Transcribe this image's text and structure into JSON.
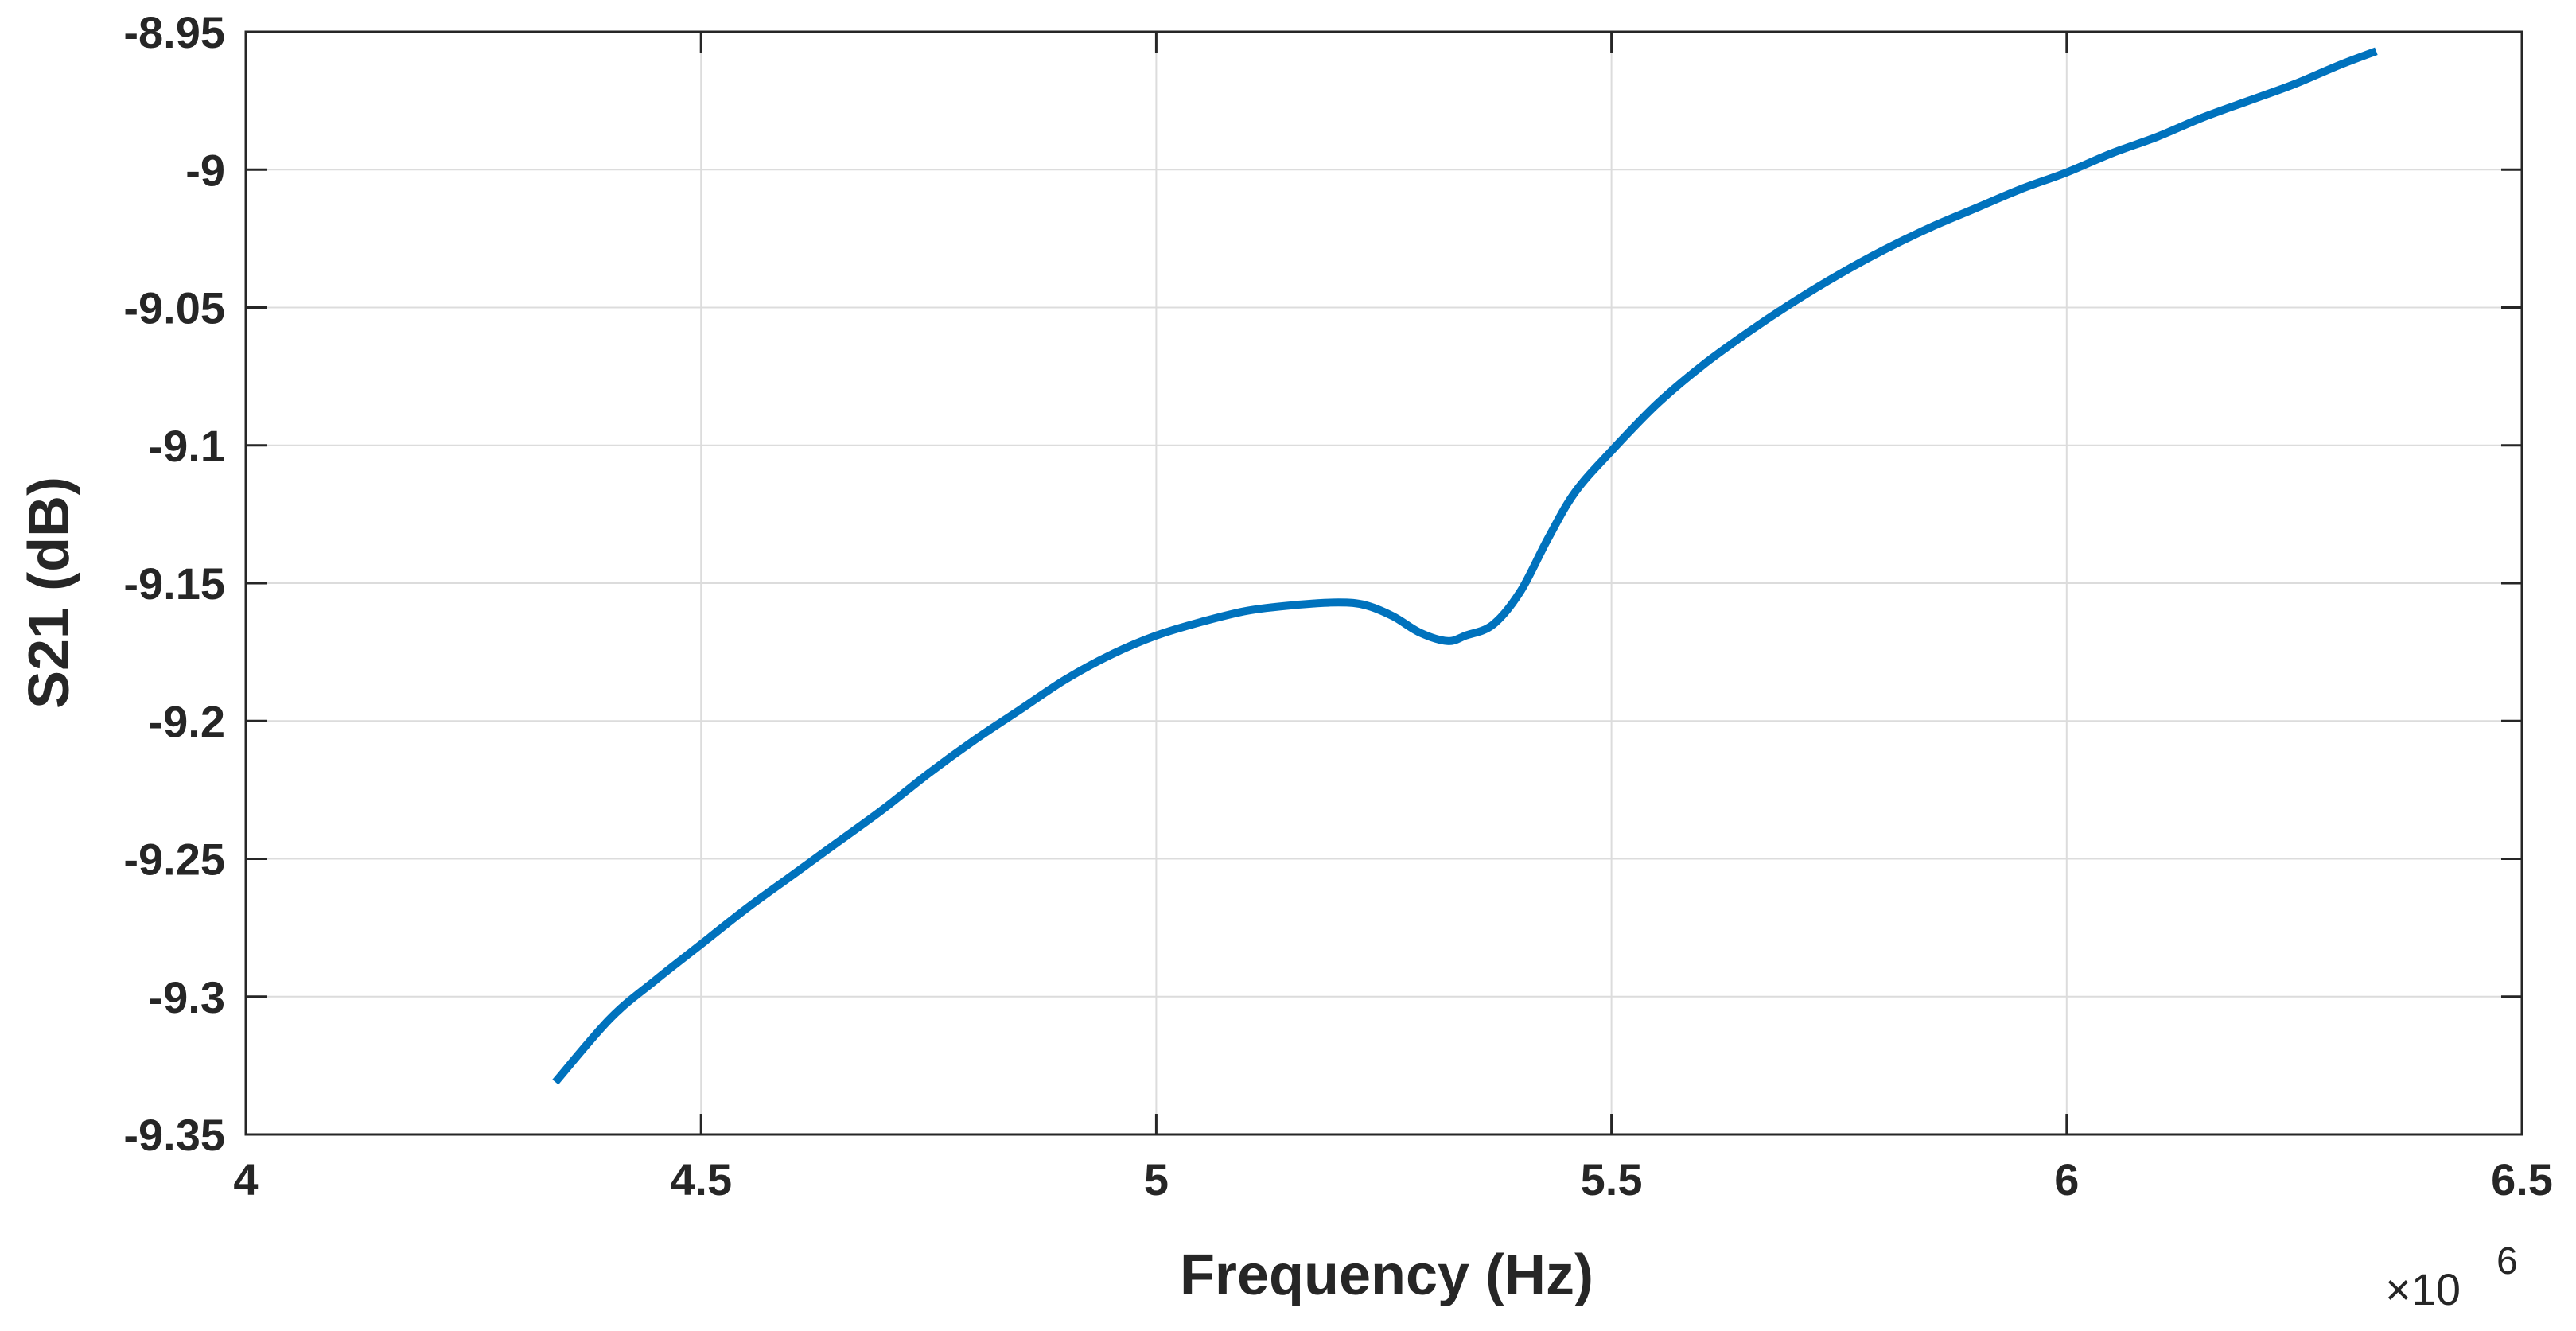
{
  "chart_data": {
    "type": "line",
    "title": "",
    "xlabel": "Frequency (Hz)",
    "ylabel": "S21 (dB)",
    "x_exponent_prefix": "×10",
    "x_exponent_power": "6",
    "xlim": [
      4,
      6.5
    ],
    "ylim": [
      -9.35,
      -8.95
    ],
    "grid": true,
    "x_ticks": [
      "4",
      "4.5",
      "5",
      "5.5",
      "6",
      "6.5"
    ],
    "y_ticks": [
      "-8.95",
      "-9",
      "-9.05",
      "-9.1",
      "-9.15",
      "-9.2",
      "-9.25",
      "-9.3",
      "-9.35"
    ],
    "series": [
      {
        "color": "#0072bd",
        "x": [
          4.34,
          4.4,
          4.45,
          4.5,
          4.55,
          4.6,
          4.65,
          4.7,
          4.75,
          4.8,
          4.85,
          4.9,
          4.95,
          5.0,
          5.05,
          5.1,
          5.15,
          5.2,
          5.23,
          5.26,
          5.29,
          5.32,
          5.34,
          5.37,
          5.4,
          5.43,
          5.46,
          5.5,
          5.55,
          5.6,
          5.65,
          5.7,
          5.75,
          5.8,
          5.85,
          5.9,
          5.95,
          6.0,
          6.05,
          6.1,
          6.15,
          6.2,
          6.25,
          6.3,
          6.34
        ],
        "y": [
          -9.331,
          -9.308,
          -9.294,
          -9.281,
          -9.268,
          -9.256,
          -9.244,
          -9.232,
          -9.219,
          -9.207,
          -9.196,
          -9.185,
          -9.176,
          -9.169,
          -9.164,
          -9.16,
          -9.158,
          -9.157,
          -9.158,
          -9.162,
          -9.168,
          -9.171,
          -9.169,
          -9.165,
          -9.153,
          -9.134,
          -9.117,
          -9.102,
          -9.085,
          -9.071,
          -9.059,
          -9.048,
          -9.038,
          -9.029,
          -9.021,
          -9.014,
          -9.007,
          -9.001,
          -8.994,
          -8.988,
          -8.981,
          -8.975,
          -8.969,
          -8.962,
          -8.957
        ]
      }
    ]
  }
}
